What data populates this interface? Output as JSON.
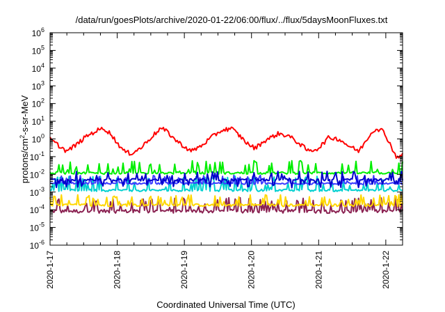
{
  "chart_data": {
    "type": "line",
    "title": "/data/run/goesPlots/archive/2020-01-22/06:00/flux/../flux/5daysMoonFluxes.txt",
    "xlabel": "Coordinated Universal Time (UTC)",
    "ylabel": "protons/cm2-s-sr-MeV",
    "ylabel_main": "protons/cm",
    "ylabel_sup": "2",
    "ylabel_rest": "-s-sr-MeV",
    "y_scale": "log",
    "ylim": [
      1e-06,
      1000000.0
    ],
    "xlim": [
      "2020-01-17",
      "2020-01-22 06:00"
    ],
    "x_ticks": [
      "2020-1-17",
      "2020-1-18",
      "2020-1-19",
      "2020-1-20",
      "2020-1-21",
      "2020-1-22"
    ],
    "y_ticks": [
      {
        "base": "10",
        "exp": "-6"
      },
      {
        "base": "10",
        "exp": "-5"
      },
      {
        "base": "10",
        "exp": "-4"
      },
      {
        "base": "10",
        "exp": "-3"
      },
      {
        "base": "10",
        "exp": "-2"
      },
      {
        "base": "10",
        "exp": "-1"
      },
      {
        "base": "10",
        "exp": "0"
      },
      {
        "base": "10",
        "exp": "1"
      },
      {
        "base": "10",
        "exp": "2"
      },
      {
        "base": "10",
        "exp": "3"
      },
      {
        "base": "10",
        "exp": "4"
      },
      {
        "base": "10",
        "exp": "5"
      },
      {
        "base": "10",
        "exp": "6"
      }
    ],
    "grid": false,
    "series": [
      {
        "color": "#ff0000",
        "x": [
          0,
          0.1,
          0.25,
          0.4,
          0.55,
          0.7,
          0.8,
          0.9,
          1.0,
          1.1,
          1.2,
          1.35,
          1.5,
          1.65,
          1.75,
          1.85,
          1.95,
          2.1,
          2.25,
          2.4,
          2.55,
          2.7,
          2.85,
          2.95,
          3.05,
          3.2,
          3.4,
          3.55,
          3.7,
          3.85,
          4.0,
          4.15,
          4.3,
          4.45,
          4.6,
          4.75,
          4.85,
          4.95,
          5.05,
          5.15,
          5.25
        ],
        "values": [
          1.0,
          0.5,
          0.2,
          0.5,
          1.5,
          3.0,
          4.0,
          2.0,
          0.6,
          0.2,
          0.15,
          0.3,
          1.2,
          4.0,
          2.5,
          1.0,
          0.5,
          0.2,
          0.4,
          1.2,
          3.0,
          4.0,
          1.2,
          0.5,
          0.3,
          0.8,
          2.0,
          1.5,
          0.6,
          0.2,
          0.3,
          1.2,
          1.0,
          0.4,
          0.2,
          1.5,
          4.0,
          3.0,
          0.7,
          0.1,
          0.12
        ]
      },
      {
        "color": "#00ee00",
        "baseline": 0.012,
        "spike_peak": 0.06,
        "spike_count": 34
      },
      {
        "color": "#00d0d0",
        "baseline": 0.0012,
        "upper": 0.008
      },
      {
        "color": "#0000cc",
        "baseline": 0.005,
        "dip_min": 0.0015
      },
      {
        "color": "#3c3cff",
        "baseline": 0.003
      },
      {
        "color": "#ffd700",
        "baseline": 0.00018,
        "peak": 0.0007
      },
      {
        "color": "#8b2252",
        "baseline": 8e-05,
        "peak": 0.0005
      }
    ]
  }
}
